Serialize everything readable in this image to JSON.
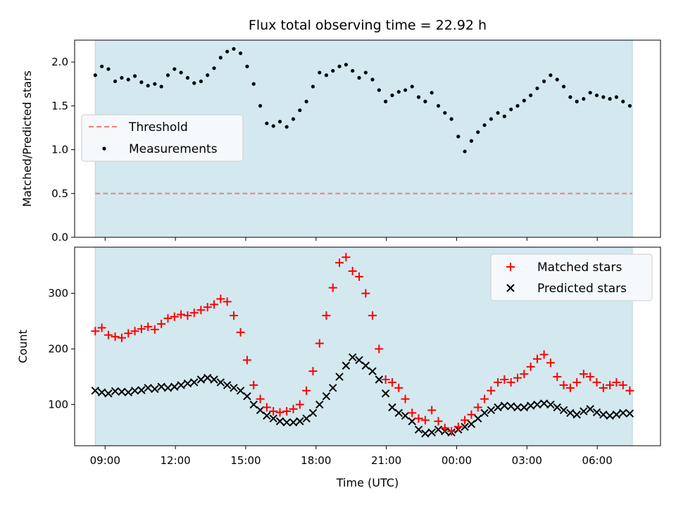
{
  "chart_data": [
    {
      "type": "scatter",
      "title": "Flux total observing time = 22.92 h",
      "ylabel": "Matched/Predicted stars",
      "xlabel": "",
      "ylim": [
        0,
        2.25
      ],
      "yticks": [
        "0.0",
        "0.5",
        "1.0",
        "1.5",
        "2.0"
      ],
      "ytick_values": [
        0,
        0.5,
        1.0,
        1.5,
        2.0
      ],
      "xlim": [
        7.7,
        32.7
      ],
      "shaded_span": [
        8.58,
        31.5
      ],
      "shade_color": "#d3e9ef",
      "legend_placement": "center-left",
      "threshold": {
        "name": "Threshold",
        "y": 0.5,
        "color": "#f07d7d"
      },
      "series": [
        {
          "name": "Measurements",
          "marker": "dot",
          "color": "#000000",
          "x": [
            8.58,
            8.86,
            9.14,
            9.43,
            9.71,
            9.99,
            10.27,
            10.55,
            10.83,
            11.12,
            11.4,
            11.68,
            11.96,
            12.24,
            12.52,
            12.8,
            13.09,
            13.37,
            13.65,
            13.93,
            14.21,
            14.49,
            14.78,
            15.06,
            15.34,
            15.62,
            15.9,
            16.18,
            16.46,
            16.75,
            17.03,
            17.31,
            17.59,
            17.87,
            18.15,
            18.44,
            18.72,
            19.0,
            19.28,
            19.56,
            19.84,
            20.12,
            20.41,
            20.69,
            20.97,
            21.25,
            21.53,
            21.81,
            22.1,
            22.38,
            22.66,
            22.94,
            23.22,
            23.5,
            23.78,
            24.07,
            24.35,
            24.63,
            24.91,
            25.19,
            25.47,
            25.76,
            26.04,
            26.32,
            26.6,
            26.88,
            27.16,
            27.44,
            27.73,
            28.01,
            28.29,
            28.57,
            28.85,
            29.13,
            29.42,
            29.7,
            29.98,
            30.26,
            30.54,
            30.82,
            31.1,
            31.39
          ],
          "y": [
            1.85,
            1.95,
            1.92,
            1.78,
            1.82,
            1.8,
            1.84,
            1.77,
            1.73,
            1.75,
            1.72,
            1.85,
            1.92,
            1.88,
            1.82,
            1.76,
            1.78,
            1.85,
            1.93,
            2.05,
            2.12,
            2.15,
            2.1,
            1.95,
            1.75,
            1.5,
            1.3,
            1.27,
            1.32,
            1.26,
            1.35,
            1.45,
            1.55,
            1.72,
            1.88,
            1.85,
            1.9,
            1.95,
            1.97,
            1.9,
            1.82,
            1.88,
            1.8,
            1.68,
            1.55,
            1.62,
            1.66,
            1.68,
            1.72,
            1.6,
            1.55,
            1.65,
            1.5,
            1.42,
            1.35,
            1.15,
            0.98,
            1.1,
            1.2,
            1.28,
            1.35,
            1.42,
            1.38,
            1.46,
            1.5,
            1.56,
            1.62,
            1.7,
            1.78,
            1.85,
            1.8,
            1.72,
            1.6,
            1.55,
            1.58,
            1.65,
            1.62,
            1.6,
            1.58,
            1.6,
            1.55,
            1.5
          ]
        }
      ]
    },
    {
      "type": "scatter",
      "title": "",
      "ylabel": "Count",
      "xlabel": "Time (UTC)",
      "ylim": [
        26,
        383
      ],
      "yticks": [
        "100",
        "200",
        "300"
      ],
      "ytick_values": [
        100,
        200,
        300
      ],
      "xlim": [
        7.7,
        32.7
      ],
      "xticks": [
        "09:00",
        "12:00",
        "15:00",
        "18:00",
        "21:00",
        "00:00",
        "03:00",
        "06:00"
      ],
      "xtick_values": [
        9,
        12,
        15,
        18,
        21,
        24,
        27,
        30
      ],
      "shaded_span": [
        8.58,
        31.5
      ],
      "shade_color": "#d3e9ef",
      "legend_placement": "top-right",
      "series": [
        {
          "name": "Matched stars",
          "marker": "plus",
          "color": "#ff0000",
          "x": [
            8.58,
            8.86,
            9.14,
            9.43,
            9.71,
            9.99,
            10.27,
            10.55,
            10.83,
            11.12,
            11.4,
            11.68,
            11.96,
            12.24,
            12.52,
            12.8,
            13.09,
            13.37,
            13.65,
            13.93,
            14.21,
            14.49,
            14.78,
            15.06,
            15.34,
            15.62,
            15.9,
            16.18,
            16.46,
            16.75,
            17.03,
            17.31,
            17.59,
            17.87,
            18.15,
            18.44,
            18.72,
            19.0,
            19.28,
            19.56,
            19.84,
            20.12,
            20.41,
            20.69,
            20.97,
            21.25,
            21.53,
            21.81,
            22.1,
            22.38,
            22.66,
            22.94,
            23.22,
            23.5,
            23.78,
            24.07,
            24.35,
            24.63,
            24.91,
            25.19,
            25.47,
            25.76,
            26.04,
            26.32,
            26.6,
            26.88,
            27.16,
            27.44,
            27.73,
            28.01,
            28.29,
            28.57,
            28.85,
            29.13,
            29.42,
            29.7,
            29.98,
            30.26,
            30.54,
            30.82,
            31.1,
            31.39
          ],
          "y": [
            232,
            238,
            225,
            222,
            220,
            228,
            232,
            236,
            240,
            235,
            245,
            255,
            258,
            262,
            260,
            265,
            270,
            275,
            280,
            290,
            285,
            260,
            230,
            180,
            135,
            110,
            95,
            88,
            86,
            88,
            92,
            100,
            125,
            160,
            210,
            260,
            310,
            355,
            365,
            340,
            330,
            300,
            260,
            200,
            145,
            140,
            130,
            110,
            85,
            75,
            72,
            90,
            70,
            58,
            52,
            60,
            72,
            82,
            95,
            110,
            125,
            140,
            145,
            140,
            148,
            155,
            168,
            182,
            190,
            175,
            150,
            135,
            130,
            140,
            155,
            150,
            140,
            130,
            135,
            140,
            135,
            125
          ]
        },
        {
          "name": "Predicted stars",
          "marker": "x",
          "color": "#000000",
          "x": [
            8.58,
            8.86,
            9.14,
            9.43,
            9.71,
            9.99,
            10.27,
            10.55,
            10.83,
            11.12,
            11.4,
            11.68,
            11.96,
            12.24,
            12.52,
            12.8,
            13.09,
            13.37,
            13.65,
            13.93,
            14.21,
            14.49,
            14.78,
            15.06,
            15.34,
            15.62,
            15.9,
            16.18,
            16.46,
            16.75,
            17.03,
            17.31,
            17.59,
            17.87,
            18.15,
            18.44,
            18.72,
            19.0,
            19.28,
            19.56,
            19.84,
            20.12,
            20.41,
            20.69,
            20.97,
            21.25,
            21.53,
            21.81,
            22.1,
            22.38,
            22.66,
            22.94,
            23.22,
            23.5,
            23.78,
            24.07,
            24.35,
            24.63,
            24.91,
            25.19,
            25.47,
            25.76,
            26.04,
            26.32,
            26.6,
            26.88,
            27.16,
            27.44,
            27.73,
            28.01,
            28.29,
            28.57,
            28.85,
            29.13,
            29.42,
            29.7,
            29.98,
            30.26,
            30.54,
            30.82,
            31.1,
            31.39
          ],
          "y": [
            125,
            122,
            120,
            124,
            123,
            122,
            125,
            126,
            130,
            128,
            132,
            130,
            132,
            135,
            138,
            140,
            145,
            148,
            145,
            140,
            135,
            130,
            125,
            115,
            100,
            90,
            80,
            75,
            70,
            68,
            68,
            70,
            75,
            85,
            100,
            115,
            130,
            150,
            170,
            185,
            180,
            170,
            160,
            145,
            120,
            95,
            85,
            80,
            70,
            55,
            48,
            50,
            55,
            52,
            50,
            55,
            60,
            65,
            75,
            85,
            90,
            95,
            98,
            97,
            95,
            95,
            98,
            100,
            102,
            100,
            95,
            90,
            85,
            82,
            88,
            92,
            86,
            82,
            80,
            82,
            85,
            84
          ]
        }
      ]
    }
  ]
}
